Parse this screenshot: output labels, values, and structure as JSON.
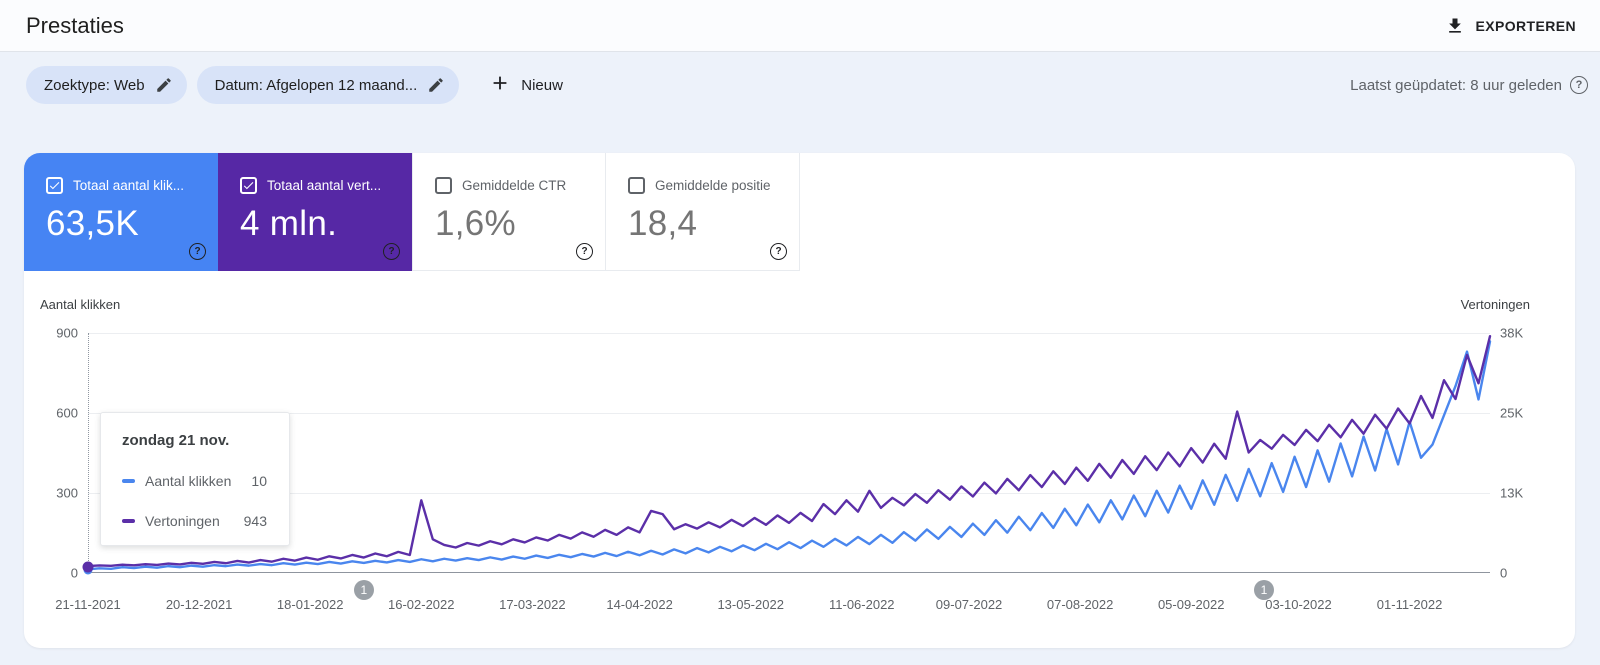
{
  "header": {
    "title": "Prestaties",
    "export_label": "EXPORTEREN"
  },
  "filters": {
    "chips": [
      {
        "label": "Zoektype: Web"
      },
      {
        "label": "Datum: Afgelopen 12 maand..."
      }
    ],
    "new_label": "Nieuw",
    "last_updated": "Laatst geüpdatet: 8 uur geleden"
  },
  "metrics": {
    "cards": [
      {
        "label": "Totaal aantal klik...",
        "value": "63,5K",
        "checked": true,
        "color": "#4684f3"
      },
      {
        "label": "Totaal aantal vert...",
        "value": "4 mln.",
        "checked": true,
        "color": "#5628a5"
      },
      {
        "label": "Gemiddelde CTR",
        "value": "1,6%",
        "checked": false,
        "color": null
      },
      {
        "label": "Gemiddelde positie",
        "value": "18,4",
        "checked": false,
        "color": null
      }
    ]
  },
  "tooltip": {
    "title": "zondag 21 nov.",
    "rows": [
      {
        "label": "Aantal klikken",
        "value": "10",
        "color": "#4a86ee"
      },
      {
        "label": "Vertoningen",
        "value": "943",
        "color": "#5b2fa8"
      }
    ]
  },
  "chart_data": {
    "type": "line",
    "title": "Prestaties - Aantal klikken en Vertoningen, afgelopen 12 maanden",
    "x_unit": "dagen sinds 21-11-2021",
    "x_max": 366,
    "x": [
      0,
      3,
      6,
      9,
      12,
      15,
      18,
      21,
      24,
      27,
      30,
      33,
      36,
      39,
      42,
      45,
      48,
      51,
      54,
      57,
      60,
      63,
      66,
      69,
      72,
      75,
      78,
      81,
      84,
      87,
      90,
      93,
      96,
      99,
      102,
      105,
      108,
      111,
      114,
      117,
      120,
      123,
      126,
      129,
      132,
      135,
      138,
      141,
      144,
      147,
      150,
      153,
      156,
      159,
      162,
      165,
      168,
      171,
      174,
      177,
      180,
      183,
      186,
      189,
      192,
      195,
      198,
      201,
      204,
      207,
      210,
      213,
      216,
      219,
      222,
      225,
      228,
      231,
      234,
      237,
      240,
      243,
      246,
      249,
      252,
      255,
      258,
      261,
      264,
      267,
      270,
      273,
      276,
      279,
      282,
      285,
      288,
      291,
      294,
      297,
      300,
      303,
      306,
      309,
      312,
      315,
      318,
      321,
      324,
      327,
      330,
      333,
      336,
      339,
      342,
      345,
      348,
      351,
      354,
      357,
      360,
      363,
      366
    ],
    "series": [
      {
        "name": "Aantal klikken",
        "axis": "left",
        "color": "#4a86ee",
        "values": [
          10,
          14,
          12,
          18,
          15,
          20,
          16,
          22,
          18,
          24,
          20,
          26,
          22,
          28,
          24,
          30,
          26,
          33,
          28,
          35,
          30,
          38,
          32,
          40,
          34,
          42,
          36,
          45,
          38,
          48,
          40,
          50,
          43,
          52,
          45,
          55,
          47,
          58,
          50,
          62,
          53,
          65,
          56,
          68,
          58,
          72,
          60,
          76,
          63,
          80,
          66,
          85,
          70,
          90,
          74,
          95,
          78,
          100,
          82,
          106,
          86,
          112,
          90,
          118,
          95,
          125,
          100,
          132,
          105,
          140,
          110,
          150,
          118,
          160,
          125,
          170,
          132,
          182,
          140,
          195,
          148,
          208,
          157,
          222,
          166,
          238,
          176,
          254,
          187,
          270,
          198,
          288,
          210,
          306,
          224,
          325,
          238,
          345,
          253,
          366,
          268,
          388,
          285,
          410,
          302,
          434,
          320,
          458,
          340,
          484,
          360,
          510,
          382,
          538,
          405,
          566,
          430,
          480,
          590,
          700,
          830,
          650,
          868
        ]
      },
      {
        "name": "Vertoningen",
        "axis": "right",
        "color": "#5b2fa8",
        "values": [
          943,
          1050,
          980,
          1150,
          1060,
          1250,
          1120,
          1350,
          1200,
          1450,
          1300,
          1600,
          1400,
          1750,
          1500,
          1900,
          1650,
          2100,
          1800,
          2300,
          1950,
          2500,
          2150,
          2700,
          2300,
          2950,
          2500,
          3200,
          2700,
          11400,
          5200,
          4300,
          3900,
          4600,
          4200,
          4900,
          4400,
          5200,
          4700,
          5500,
          5000,
          5900,
          5300,
          6300,
          5600,
          6700,
          5900,
          7100,
          6300,
          9700,
          9200,
          6800,
          7600,
          6900,
          7900,
          7100,
          8300,
          7300,
          8600,
          7500,
          9000,
          7800,
          9400,
          8100,
          10800,
          9200,
          11400,
          9600,
          12900,
          10200,
          11800,
          10600,
          12400,
          11000,
          13000,
          11500,
          13600,
          12000,
          14200,
          12500,
          14800,
          13000,
          15400,
          13500,
          16000,
          14000,
          16600,
          14500,
          17200,
          15000,
          17800,
          15600,
          18400,
          16200,
          19000,
          16800,
          19700,
          17400,
          20400,
          18000,
          25500,
          19000,
          21000,
          19600,
          21800,
          20200,
          22600,
          20800,
          23400,
          21400,
          24200,
          22000,
          25000,
          22800,
          26000,
          23600,
          28000,
          24500,
          30500,
          27500,
          34500,
          30000,
          37500
        ]
      }
    ],
    "y_left": {
      "label": "Aantal klikken",
      "max": 900,
      "ticks": [
        "900",
        "600",
        "300",
        "0"
      ]
    },
    "y_right": {
      "label": "Vertoningen",
      "max": 38000,
      "ticks": [
        "38K",
        "25K",
        "13K",
        "0"
      ]
    },
    "x_tick_labels": [
      "21-11-2021",
      "20-12-2021",
      "18-01-2022",
      "16-02-2022",
      "17-03-2022",
      "14-04-2022",
      "13-05-2022",
      "11-06-2022",
      "09-07-2022",
      "07-08-2022",
      "05-09-2022",
      "03-10-2022",
      "01-11-2022"
    ],
    "x_tick_days": [
      0,
      29,
      58,
      87,
      116,
      144,
      173,
      202,
      230,
      259,
      288,
      316,
      345
    ],
    "annotations": [
      {
        "label": "1",
        "day": 72
      },
      {
        "label": "1",
        "day": 307
      }
    ],
    "hover": {
      "index": 0
    },
    "grid": true,
    "legend_position": "none"
  }
}
